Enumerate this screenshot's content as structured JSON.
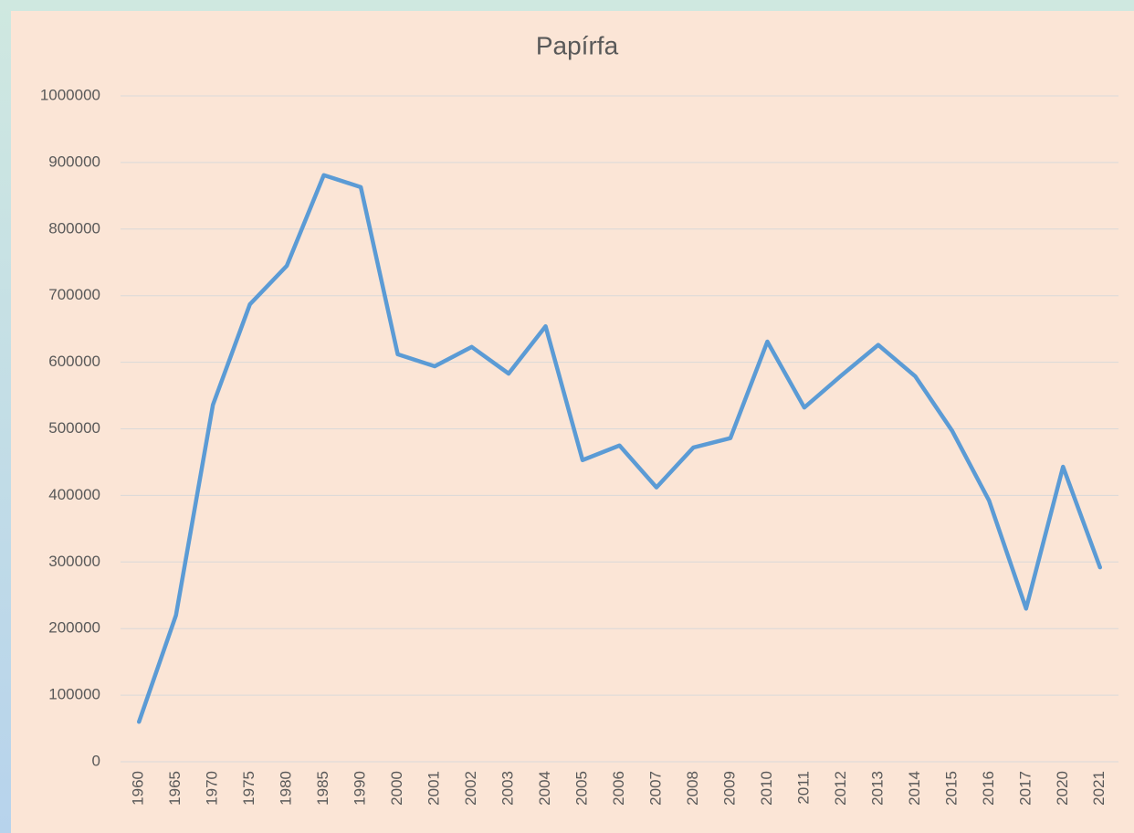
{
  "chart_data": {
    "type": "line",
    "title": "Papírfa",
    "categories": [
      "1960",
      "1965",
      "1970",
      "1975",
      "1980",
      "1985",
      "1990",
      "2000",
      "2001",
      "2002",
      "2003",
      "2004",
      "2005",
      "2006",
      "2007",
      "2008",
      "2009",
      "2010",
      "2011",
      "2012",
      "2013",
      "2014",
      "2015",
      "2016",
      "2017",
      "2020",
      "2021"
    ],
    "values": [
      60000,
      220000,
      536000,
      687000,
      745000,
      881000,
      863000,
      612000,
      594000,
      623000,
      583000,
      654000,
      453000,
      475000,
      412000,
      472000,
      486000,
      631000,
      532000,
      580000,
      626000,
      579000,
      497000,
      392000,
      230000,
      443000,
      292000
    ],
    "color": "#5b9bd5",
    "ylim": [
      0,
      1000000
    ],
    "yticks": [
      0,
      100000,
      200000,
      300000,
      400000,
      500000,
      600000,
      700000,
      800000,
      900000,
      1000000
    ],
    "grid": true
  }
}
